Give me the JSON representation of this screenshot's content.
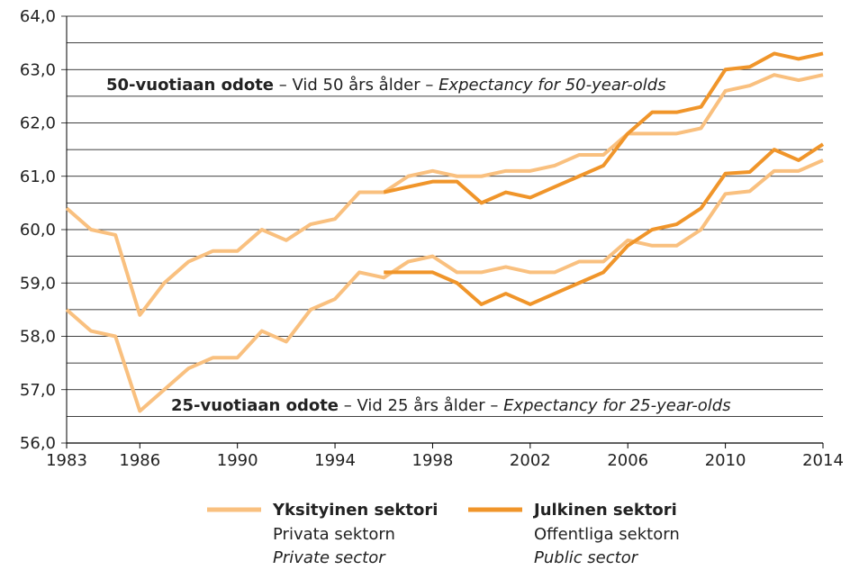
{
  "chart_data": {
    "type": "line",
    "x": [
      1983,
      1984,
      1985,
      1986,
      1987,
      1988,
      1989,
      1990,
      1991,
      1992,
      1993,
      1994,
      1995,
      1996,
      1997,
      1998,
      1999,
      2000,
      2001,
      2002,
      2003,
      2004,
      2005,
      2006,
      2007,
      2008,
      2009,
      2010,
      2011,
      2012,
      2013,
      2014
    ],
    "xlim": [
      1983,
      2014
    ],
    "xticks": [
      1983,
      1986,
      1990,
      1994,
      1998,
      2002,
      2006,
      2010,
      2014
    ],
    "ylim": [
      56,
      64
    ],
    "yticks": [
      {
        "value": 56,
        "label": "56,0"
      },
      {
        "value": 57,
        "label": "57,0"
      },
      {
        "value": 58,
        "label": "58,0"
      },
      {
        "value": 59,
        "label": "59,0"
      },
      {
        "value": 60,
        "label": "60,0"
      },
      {
        "value": 61,
        "label": "61,0"
      },
      {
        "value": 62,
        "label": "62,0"
      },
      {
        "value": 63,
        "label": "63,0"
      },
      {
        "value": 64,
        "label": "64,0"
      }
    ],
    "minor_yticks": [
      56.5,
      57.5,
      58.5,
      59.5,
      60.5,
      61.5,
      62.5,
      63.5
    ],
    "grid": true,
    "legend": [
      {
        "color": "#f9c07f",
        "label": "Yksityinen sektori",
        "label_sv": "Privata sektorn",
        "label_en": "Private sector"
      },
      {
        "color": "#f0952a",
        "label": "Julkinen sektori",
        "label_sv": "Offentliga sektorn",
        "label_en": "Public sector"
      }
    ],
    "series": [
      {
        "legend_entry": 0,
        "values": [
          60.4,
          60.0,
          59.9,
          58.4,
          59.0,
          59.4,
          59.6,
          59.6,
          60.0,
          59.8,
          60.1,
          60.2,
          60.7,
          60.7,
          61.0,
          61.1,
          61.0,
          61.0,
          61.1,
          61.1,
          61.2,
          61.4,
          61.4,
          61.8,
          61.8,
          61.8,
          61.9,
          62.6,
          62.7,
          62.9,
          62.8,
          62.9
        ]
      },
      {
        "legend_entry": 0,
        "values": [
          58.5,
          58.1,
          58.0,
          56.6,
          57.0,
          57.4,
          57.6,
          57.6,
          58.1,
          57.9,
          58.5,
          58.7,
          59.2,
          59.1,
          59.4,
          59.5,
          59.2,
          59.2,
          59.3,
          59.2,
          59.2,
          59.4,
          59.4,
          59.8,
          59.7,
          59.7,
          60.0,
          60.67,
          60.72,
          61.1,
          61.1,
          61.3
        ]
      },
      {
        "legend_entry": 1,
        "values": [
          null,
          null,
          null,
          null,
          null,
          null,
          null,
          null,
          null,
          null,
          null,
          null,
          null,
          60.7,
          60.8,
          60.9,
          60.9,
          60.5,
          60.7,
          60.6,
          60.8,
          61.0,
          61.2,
          61.8,
          62.2,
          62.2,
          62.3,
          63.0,
          63.05,
          63.3,
          63.2,
          63.3
        ]
      },
      {
        "legend_entry": 1,
        "values": [
          null,
          null,
          null,
          null,
          null,
          null,
          null,
          null,
          null,
          null,
          null,
          null,
          null,
          59.2,
          59.2,
          59.2,
          59.0,
          58.6,
          58.8,
          58.6,
          58.8,
          59.0,
          59.2,
          59.7,
          60.0,
          60.1,
          60.4,
          61.05,
          61.08,
          61.5,
          61.3,
          61.6
        ]
      }
    ],
    "annotations": [
      [
        {
          "text": "50-vuotiaan odote",
          "style": "bold"
        },
        {
          "text": " – Vid 50 års ålder – ",
          "style": "normal"
        },
        {
          "text": "Expectancy for 50-year-olds",
          "style": "italic"
        }
      ],
      [
        {
          "text": "25-vuotiaan odote",
          "style": "bold"
        },
        {
          "text": " – Vid 25 års ålder – ",
          "style": "normal"
        },
        {
          "text": "Expectancy for 25-year-olds",
          "style": "italic"
        }
      ]
    ]
  }
}
